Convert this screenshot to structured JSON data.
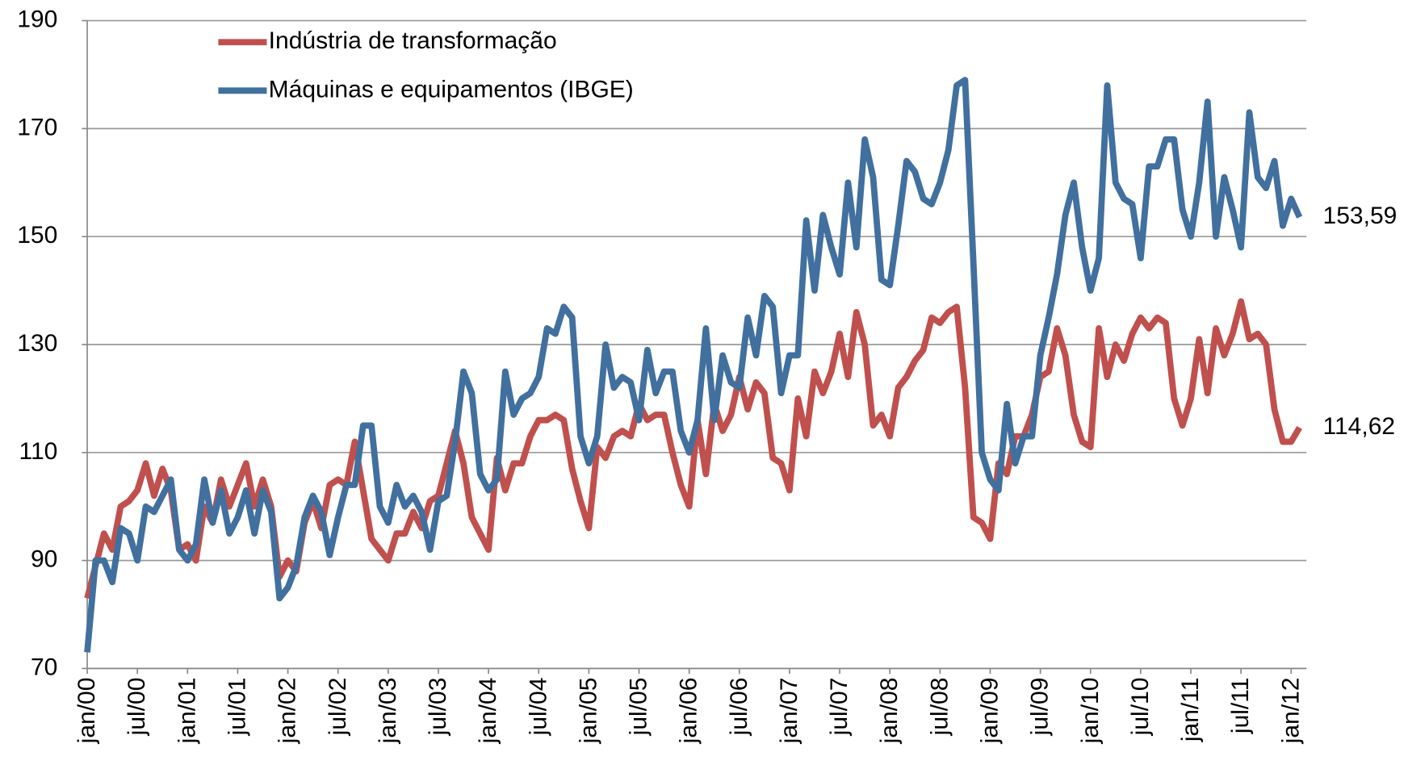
{
  "chart_data": {
    "type": "line",
    "categories": [
      "jan/00",
      null,
      null,
      null,
      null,
      null,
      "jul/00",
      null,
      null,
      null,
      null,
      null,
      "jan/01",
      null,
      null,
      null,
      null,
      null,
      "jul/01",
      null,
      null,
      null,
      null,
      null,
      "jan/02",
      null,
      null,
      null,
      null,
      null,
      "jul/02",
      null,
      null,
      null,
      null,
      null,
      "jan/03",
      null,
      null,
      null,
      null,
      null,
      "jul/03",
      null,
      null,
      null,
      null,
      null,
      "jan/04",
      null,
      null,
      null,
      null,
      null,
      "jul/04",
      null,
      null,
      null,
      null,
      null,
      "jan/05",
      null,
      null,
      null,
      null,
      null,
      "jul/05",
      null,
      null,
      null,
      null,
      null,
      "jan/06",
      null,
      null,
      null,
      null,
      null,
      "jul/06",
      null,
      null,
      null,
      null,
      null,
      "jan/07",
      null,
      null,
      null,
      null,
      null,
      "jul/07",
      null,
      null,
      null,
      null,
      null,
      "jan/08",
      null,
      null,
      null,
      null,
      null,
      "jul/08",
      null,
      null,
      null,
      null,
      null,
      "jan/09",
      null,
      null,
      null,
      null,
      null,
      "jul/09",
      null,
      null,
      null,
      null,
      null,
      "jan/10",
      null,
      null,
      null,
      null,
      null,
      "jul/10",
      null,
      null,
      null,
      null,
      null,
      "jan/11",
      null,
      null,
      null,
      null,
      null,
      "jul/11",
      null,
      null,
      null,
      null,
      null,
      "jan/12",
      null
    ],
    "series": [
      {
        "name": "Indústria de transformação",
        "color": "#c0504d",
        "values": [
          83,
          89,
          95,
          92,
          100,
          101,
          103,
          108,
          102,
          107,
          103,
          92,
          93,
          90,
          100,
          97,
          105,
          100,
          104,
          108,
          100,
          105,
          100,
          87,
          90,
          88,
          97,
          101,
          96,
          104,
          105,
          104,
          112,
          103,
          94,
          92,
          90,
          95,
          95,
          99,
          96,
          101,
          102,
          108,
          114,
          108,
          98,
          95,
          92,
          109,
          103,
          108,
          108,
          113,
          116,
          116,
          117,
          116,
          107,
          101,
          96,
          111,
          109,
          113,
          114,
          113,
          119,
          116,
          117,
          117,
          110,
          104,
          100,
          116,
          106,
          119,
          114,
          117,
          124,
          118,
          123,
          121,
          109,
          108,
          103,
          120,
          113,
          125,
          121,
          125,
          132,
          124,
          136,
          130,
          115,
          117,
          113,
          122,
          124,
          127,
          129,
          135,
          134,
          136,
          137,
          122,
          98,
          97,
          94,
          108,
          106,
          113,
          113,
          117,
          124,
          125,
          133,
          128,
          117,
          112,
          111,
          133,
          124,
          130,
          127,
          132,
          135,
          133,
          135,
          134,
          120,
          115,
          120,
          131,
          121,
          133,
          128,
          132,
          138,
          131,
          132,
          130,
          118,
          112,
          112,
          114.62
        ],
        "value_labels": [
          null,
          null,
          null,
          null,
          null,
          null,
          null,
          null,
          null,
          null,
          null,
          null,
          null,
          null,
          null,
          null,
          null,
          null,
          null,
          null,
          null,
          null,
          null,
          null,
          null,
          null,
          null,
          null,
          null,
          null,
          null,
          null,
          null,
          null,
          null,
          null,
          null,
          null,
          null,
          null,
          null,
          null,
          null,
          null,
          null,
          null,
          null,
          null,
          null,
          null,
          null,
          null,
          null,
          null,
          null,
          null,
          null,
          null,
          null,
          null,
          null,
          null,
          null,
          null,
          null,
          null,
          null,
          null,
          null,
          null,
          null,
          null,
          null,
          null,
          null,
          null,
          null,
          null,
          null,
          null,
          null,
          null,
          null,
          null,
          null,
          null,
          null,
          null,
          null,
          null,
          null,
          null,
          null,
          null,
          null,
          null,
          null,
          null,
          null,
          null,
          null,
          null,
          null,
          null,
          null,
          null,
          null,
          null,
          null,
          null,
          null,
          null,
          null,
          null,
          null,
          null,
          null,
          null,
          null,
          null,
          null,
          null,
          null,
          null,
          null,
          null,
          null,
          null,
          null,
          null,
          null,
          null,
          null,
          null,
          null,
          null,
          null,
          null,
          null,
          null,
          null,
          null,
          null,
          null,
          null,
          "114,62"
        ]
      },
      {
        "name": "Máquinas e equipamentos (IBGE)",
        "color": "#41709f",
        "values": [
          73,
          90,
          90,
          86,
          96,
          95,
          90,
          100,
          99,
          102,
          105,
          92,
          90,
          93,
          105,
          97,
          103,
          95,
          98,
          103,
          95,
          103,
          99,
          83,
          85,
          89,
          98,
          102,
          99,
          91,
          98,
          104,
          104,
          115,
          115,
          100,
          97,
          104,
          100,
          102,
          99,
          92,
          101,
          102,
          112,
          125,
          121,
          106,
          103,
          105,
          125,
          117,
          120,
          121,
          124,
          133,
          132,
          137,
          135,
          113,
          108,
          113,
          130,
          122,
          124,
          123,
          116,
          129,
          121,
          125,
          125,
          114,
          110,
          116,
          133,
          116,
          128,
          123,
          122,
          135,
          128,
          139,
          137,
          121,
          128,
          128,
          153,
          140,
          154,
          148,
          143,
          160,
          148,
          168,
          161,
          142,
          141,
          152,
          164,
          162,
          157,
          156,
          160,
          166,
          178,
          179,
          145,
          110,
          105,
          103,
          119,
          108,
          113,
          113,
          128,
          135,
          143,
          154,
          160,
          148,
          140,
          146,
          178,
          160,
          157,
          156,
          146,
          163,
          163,
          168,
          168,
          155,
          150,
          160,
          175,
          150,
          161,
          155,
          148,
          173,
          161,
          159,
          164,
          152,
          157,
          153.59
        ],
        "value_labels": [
          null,
          null,
          null,
          null,
          null,
          null,
          null,
          null,
          null,
          null,
          null,
          null,
          null,
          null,
          null,
          null,
          null,
          null,
          null,
          null,
          null,
          null,
          null,
          null,
          null,
          null,
          null,
          null,
          null,
          null,
          null,
          null,
          null,
          null,
          null,
          null,
          null,
          null,
          null,
          null,
          null,
          null,
          null,
          null,
          null,
          null,
          null,
          null,
          null,
          null,
          null,
          null,
          null,
          null,
          null,
          null,
          null,
          null,
          null,
          null,
          null,
          null,
          null,
          null,
          null,
          null,
          null,
          null,
          null,
          null,
          null,
          null,
          null,
          null,
          null,
          null,
          null,
          null,
          null,
          null,
          null,
          null,
          null,
          null,
          null,
          null,
          null,
          null,
          null,
          null,
          null,
          null,
          null,
          null,
          null,
          null,
          null,
          null,
          null,
          null,
          null,
          null,
          null,
          null,
          null,
          null,
          null,
          null,
          null,
          null,
          null,
          null,
          null,
          null,
          null,
          null,
          null,
          null,
          null,
          null,
          null,
          null,
          null,
          null,
          null,
          null,
          null,
          null,
          null,
          null,
          null,
          null,
          null,
          null,
          null,
          null,
          null,
          null,
          null,
          null,
          null,
          null,
          null,
          null,
          null,
          "153,59"
        ]
      }
    ],
    "ylim": [
      70,
      190
    ],
    "yticks": [
      70,
      90,
      110,
      130,
      150,
      170,
      190
    ],
    "grid": true,
    "legend": "top-left"
  }
}
